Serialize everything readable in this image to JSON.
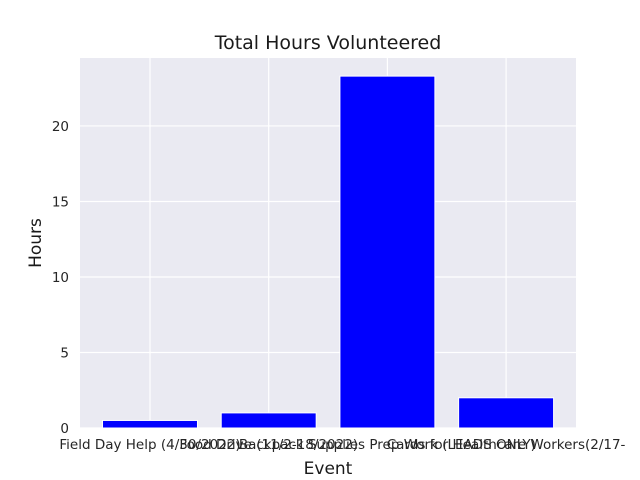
{
  "chart_data": {
    "type": "bar",
    "title": "Total Hours Volunteered",
    "xlabel": "Event",
    "ylabel": "Hours",
    "categories": [
      "Field Day Help (4/30/2022)",
      "Food Drive (11/2-18/2022)",
      "Backpack Supplies Prep Work (LEADS ONLY)",
      "Cards for Healthcare Workers(2/17-"
    ],
    "values": [
      0.5,
      1,
      23.3,
      2
    ],
    "ylim": [
      0,
      24.5
    ],
    "yticks": [
      0,
      5,
      10,
      15,
      20
    ],
    "grid": true,
    "bar_color": "#0000ff",
    "plot_background": "#eaeaf2",
    "grid_color": "#ffffff"
  }
}
